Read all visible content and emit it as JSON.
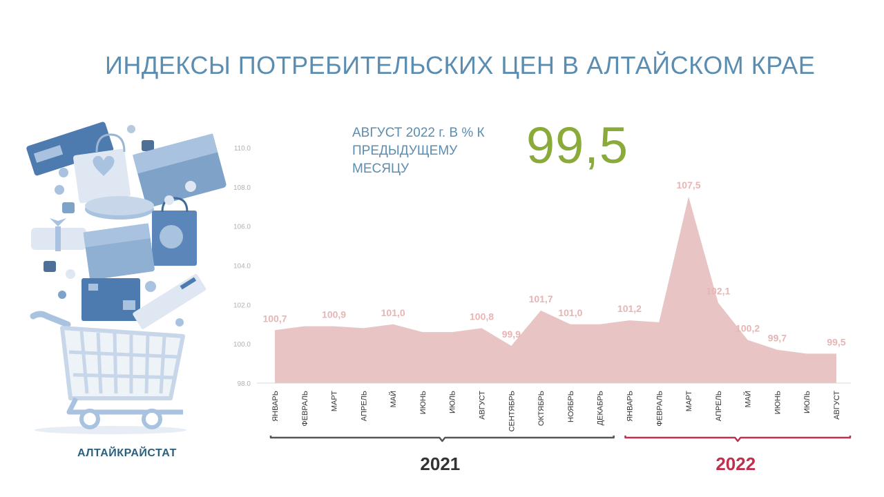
{
  "header": {
    "title": "ИНДЕКСЫ ПОТРЕБИТЕЛЬСКИХ ЦЕН В АЛТАЙСКОМ КРАЕ",
    "subtitle": "АВГУСТ  2022 г. В % К ПРЕДЫДУЩЕМУ МЕСЯЦУ",
    "highlight_value": "99,5"
  },
  "footer": {
    "agency": "АЛТАЙКРАЙСТАТ"
  },
  "colors": {
    "title": "#5b8db0",
    "highlight": "#8aab3a",
    "area_fill": "#e8c4c4",
    "data_label": "#e8b4b4",
    "bracket_2021": "#555555",
    "bracket_2022": "#c0304e",
    "illustration": "#6d93bf"
  },
  "illustration": {
    "icon": "shopping-cart-icon"
  },
  "chart_data": {
    "type": "area",
    "ylim": [
      98.0,
      110.0
    ],
    "y_ticks": [
      "98.0",
      "100.0",
      "102.0",
      "104.0",
      "106.0",
      "108.0",
      "110.0"
    ],
    "y_tick_values": [
      98,
      100,
      102,
      104,
      106,
      108,
      110
    ],
    "categories": [
      "ЯНВАРЬ",
      "ФЕВРАЛЬ",
      "МАРТ",
      "АПРЕЛЬ",
      "МАЙ",
      "ИЮНЬ",
      "ИЮЛЬ",
      "АВГУСТ",
      "СЕНТЯБРЬ",
      "ОКТЯБРЬ",
      "НОЯБРЬ",
      "ДЕКАБРЬ",
      "ЯНВАРЬ",
      "ФЕВРАЛЬ",
      "МАРТ",
      "АПРЕЛЬ",
      "МАЙ",
      "ИЮНЬ",
      "ИЮЛЬ",
      "АВГУСТ"
    ],
    "values": [
      100.7,
      100.9,
      100.9,
      100.8,
      101.0,
      100.6,
      100.6,
      100.8,
      99.9,
      101.7,
      101.0,
      101.0,
      101.2,
      101.1,
      107.5,
      102.1,
      100.2,
      99.7,
      99.5,
      99.5
    ],
    "data_labels": [
      "100,7",
      "",
      "100,9",
      "",
      "101,0",
      "",
      "",
      "100,8",
      "99,9",
      "101,7",
      "101,0",
      "",
      "101,2",
      "",
      "107,5",
      "102,1",
      "100,2",
      "99,7",
      "",
      "99,5"
    ],
    "year_groups": [
      {
        "label": "2021",
        "start": 0,
        "end": 11,
        "color": "#555555"
      },
      {
        "label": "2022",
        "start": 12,
        "end": 19,
        "color": "#c0304e"
      }
    ],
    "grid": false
  }
}
